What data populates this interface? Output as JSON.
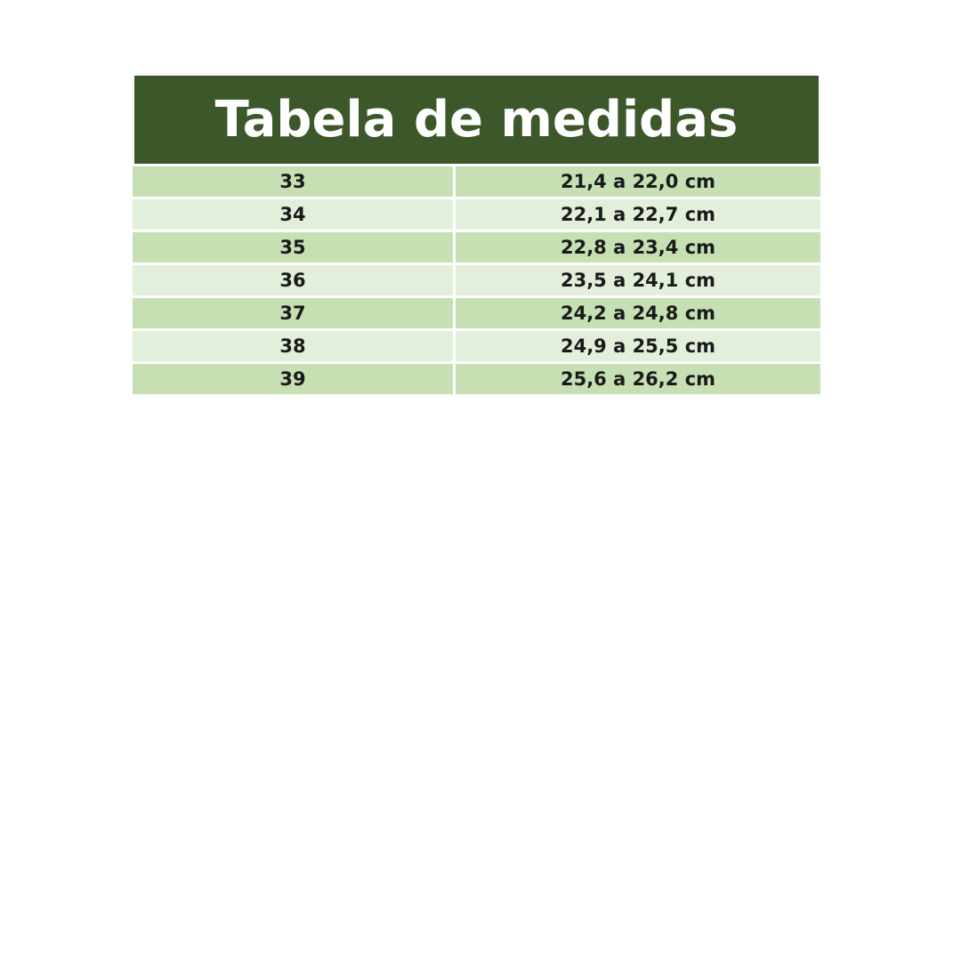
{
  "title": "Tabela de medidas",
  "rows": [
    [
      "33",
      "21,4 a 22,0 cm"
    ],
    [
      "34",
      "22,1 a 22,7 cm"
    ],
    [
      "35",
      "22,8 a 23,4 cm"
    ],
    [
      "36",
      "23,5 a 24,1 cm"
    ],
    [
      "37",
      "24,2 a 24,8 cm"
    ],
    [
      "38",
      "24,9 a 25,5 cm"
    ],
    [
      "39",
      "25,6 a 26,2 cm"
    ]
  ],
  "colors": {
    "header": "#3c582a",
    "row_dark": "#c6e0b4",
    "row_light": "#e2efda"
  }
}
